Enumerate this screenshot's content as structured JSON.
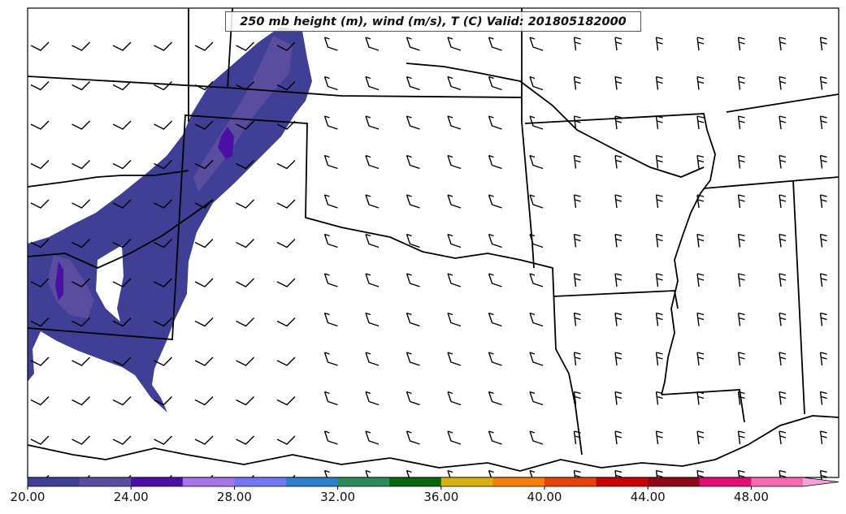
{
  "title": "250 mb height (m), wind (m/s), T (C) Valid: 201805182000",
  "colorbar": {
    "ticks": [
      "20.00",
      "24.00",
      "28.00",
      "32.00",
      "36.00",
      "40.00",
      "44.00",
      "48.00"
    ],
    "colors": [
      "#3f3f96",
      "#5a4c9e",
      "#4b0fa6",
      "#a874e8",
      "#7476f5",
      "#2f7fca",
      "#2e8b57",
      "#0b640f",
      "#d6b211",
      "#f57f0a",
      "#e8410b",
      "#c90406",
      "#8e0818",
      "#e20d76",
      "#f56ab0",
      "#f9a0d8"
    ],
    "extend": "max"
  },
  "field": {
    "name": "wind speed (m/s)",
    "colors": {
      "low": "#3f3f96",
      "mid": "#5a4c9e",
      "high": "#4b0fa6"
    }
  },
  "map": {
    "region": "South-central United States",
    "boundary_color": "#000000"
  }
}
